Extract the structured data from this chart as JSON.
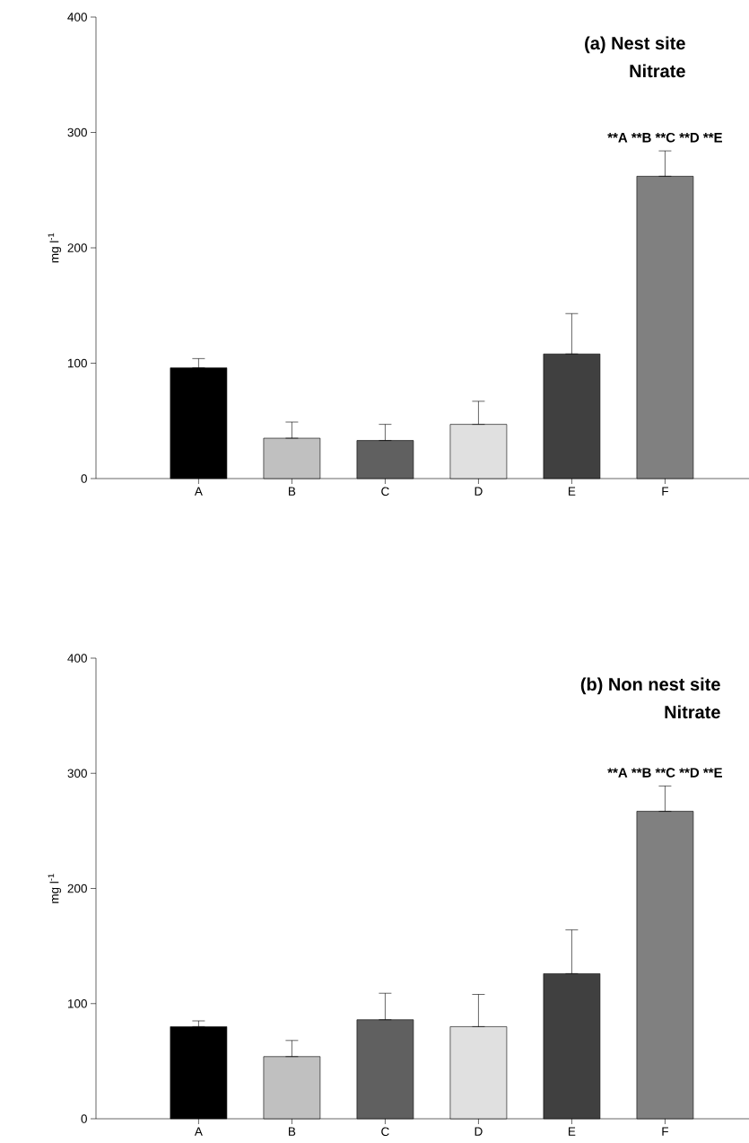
{
  "chart_data": [
    {
      "type": "bar",
      "title": "(a) Nest site",
      "subtitle": "Nitrate",
      "ylabel": "mg l$^{-1}$",
      "categories": [
        "A",
        "B",
        "C",
        "D",
        "E",
        "F"
      ],
      "values": [
        96,
        35,
        33,
        47,
        108,
        262
      ],
      "colors": [
        "#000000",
        "#c0c0c0",
        "#606060",
        "#e0e0e0",
        "#404040",
        "#808080"
      ],
      "errors": [
        [
          96,
          104
        ],
        [
          35,
          49
        ],
        [
          33,
          47
        ],
        [
          47,
          67
        ],
        [
          108,
          143
        ],
        [
          262,
          284
        ]
      ],
      "ylim": [
        0,
        400
      ],
      "yticks": [
        0,
        100,
        200,
        300,
        400
      ],
      "annotations": [
        "**A **B **C **D **E"
      ]
    },
    {
      "type": "bar",
      "title": "(b) Non nest site",
      "subtitle": "Nitrate",
      "ylabel": "mg l$^{-1}$",
      "categories": [
        "A",
        "B",
        "C",
        "D",
        "E",
        "F"
      ],
      "values": [
        80,
        54,
        86,
        80,
        126,
        267
      ],
      "colors": [
        "#000000",
        "#c0c0c0",
        "#606060",
        "#e0e0e0",
        "#404040",
        "#808080"
      ],
      "errors": [
        [
          80,
          85
        ],
        [
          54,
          68
        ],
        [
          86,
          109
        ],
        [
          80,
          108
        ],
        [
          126,
          164
        ],
        [
          267,
          289
        ]
      ],
      "ylim": [
        0,
        400
      ],
      "yticks": [
        0,
        100,
        200,
        300,
        400
      ],
      "annotations": [
        "**A **B **C **D **E"
      ]
    }
  ]
}
